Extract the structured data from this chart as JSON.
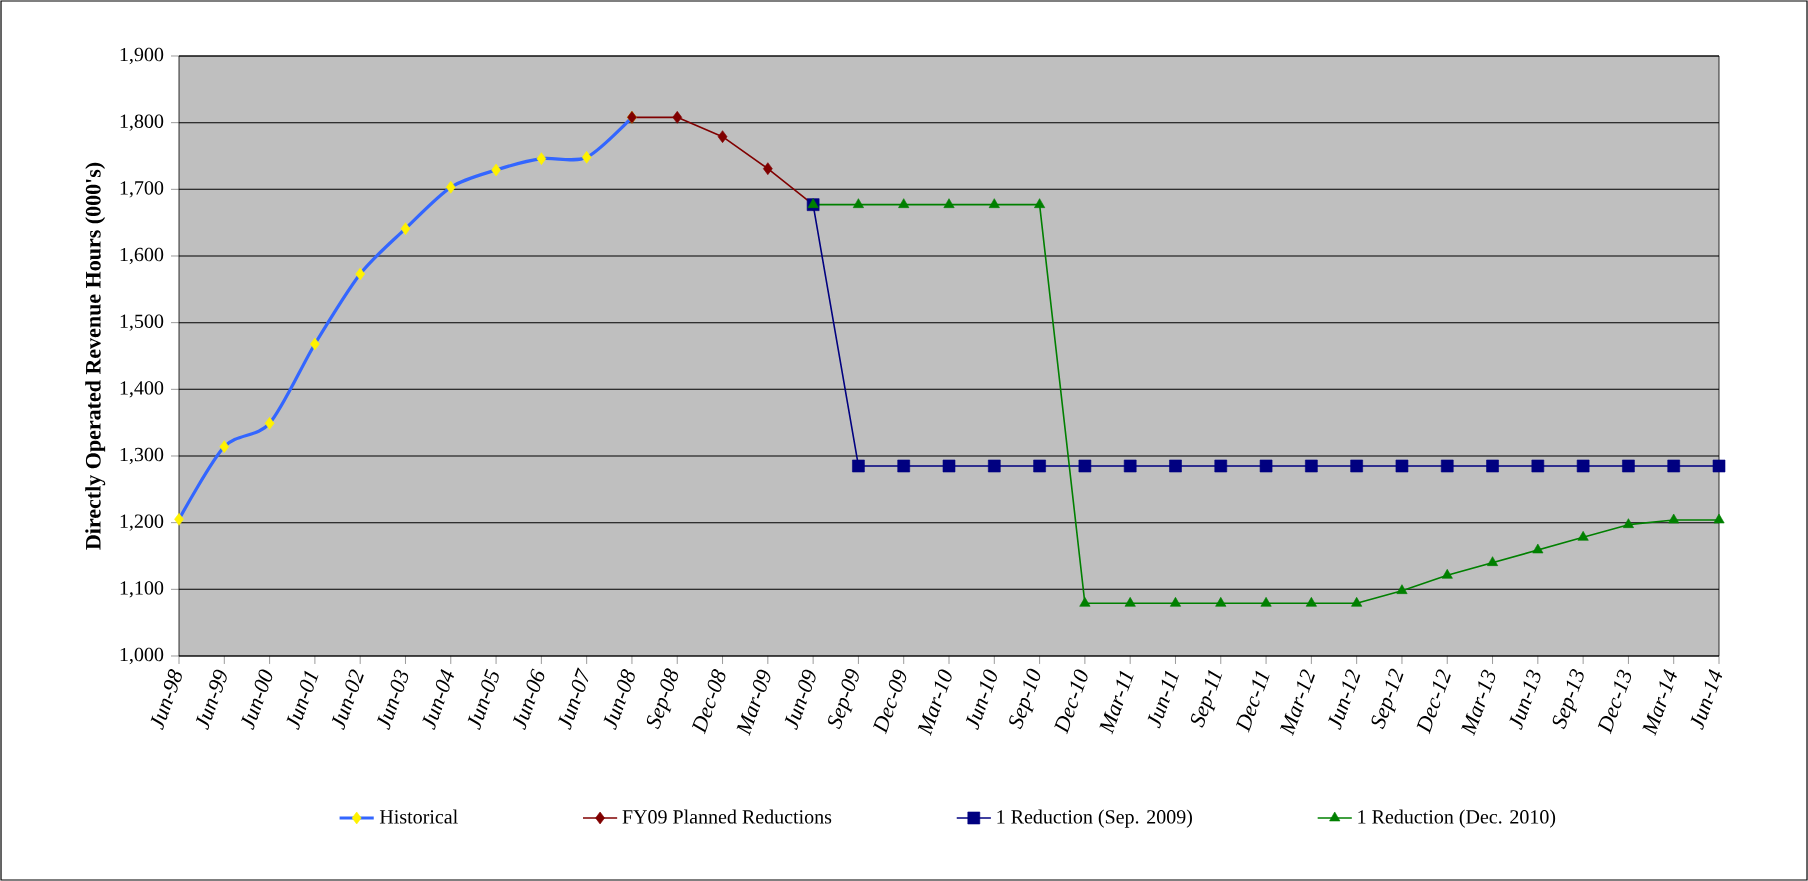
{
  "chart_data": {
    "type": "line",
    "ylabel": "Directly Operated Revenue Hours (000's)",
    "categories": [
      "Jun-98",
      "Jun-99",
      "Jun-00",
      "Jun-01",
      "Jun-02",
      "Jun-03",
      "Jun-04",
      "Jun-05",
      "Jun-06",
      "Jun-07",
      "Jun-08",
      "Sep-08",
      "Dec-08",
      "Mar-09",
      "Jun-09",
      "Sep-09",
      "Dec-09",
      "Mar-10",
      "Jun-10",
      "Sep-10",
      "Dec-10",
      "Mar-11",
      "Jun-11",
      "Sep-11",
      "Dec-11",
      "Mar-12",
      "Jun-12",
      "Sep-12",
      "Dec-12",
      "Mar-13",
      "Jun-13",
      "Sep-13",
      "Dec-13",
      "Mar-14",
      "Jun-14"
    ],
    "series": [
      {
        "name": "Historical",
        "color": "#3366ff",
        "marker": "diamond",
        "values": [
          1205,
          1314,
          1349,
          1468,
          1573,
          1641,
          1703,
          1729,
          1746,
          1748,
          1808,
          null,
          null,
          null,
          null,
          null,
          null,
          null,
          null,
          null,
          null,
          null,
          null,
          null,
          null,
          null,
          null,
          null,
          null,
          null,
          null,
          null,
          null,
          null,
          null
        ]
      },
      {
        "name": "FY09 Planned Reductions",
        "color": "#800000",
        "marker": "diamond",
        "values": [
          null,
          null,
          null,
          null,
          null,
          null,
          null,
          null,
          null,
          null,
          1808,
          1808,
          1779,
          1731,
          1677,
          null,
          null,
          null,
          null,
          null,
          null,
          null,
          null,
          null,
          null,
          null,
          null,
          null,
          null,
          null,
          null,
          null,
          null,
          null,
          null
        ]
      },
      {
        "name": "1 Reduction (Sep. 2009)",
        "color": "#000080",
        "marker": "square",
        "values": [
          null,
          null,
          null,
          null,
          null,
          null,
          null,
          null,
          null,
          null,
          null,
          null,
          null,
          null,
          1677,
          1285,
          1285,
          1285,
          1285,
          1285,
          1285,
          1285,
          1285,
          1285,
          1285,
          1285,
          1285,
          1285,
          1285,
          1285,
          1285,
          1285,
          1285,
          1285,
          1285
        ]
      },
      {
        "name": "1 Reduction (Dec. 2010)",
        "color": "#008000",
        "marker": "triangle",
        "values": [
          null,
          null,
          null,
          null,
          null,
          null,
          null,
          null,
          null,
          null,
          null,
          null,
          null,
          null,
          1677,
          1677,
          1677,
          1677,
          1677,
          1677,
          1079,
          1079,
          1079,
          1079,
          1079,
          1079,
          1079,
          1098,
          1121,
          1140,
          1159,
          1178,
          1197,
          1204,
          1204
        ]
      }
    ],
    "ylim": [
      1000,
      1900
    ],
    "yticks": [
      {
        "value": 1000,
        "label": "1,000"
      },
      {
        "value": 1100,
        "label": "1,100"
      },
      {
        "value": 1200,
        "label": "1,200"
      },
      {
        "value": 1300,
        "label": "1,300"
      },
      {
        "value": 1400,
        "label": "1,400"
      },
      {
        "value": 1500,
        "label": "1,500"
      },
      {
        "value": 1600,
        "label": "1,600"
      },
      {
        "value": 1700,
        "label": "1,700"
      },
      {
        "value": 1800,
        "label": "1,800"
      },
      {
        "value": 1900,
        "label": "1,900"
      }
    ],
    "grid": "y",
    "legend": "bottom"
  }
}
